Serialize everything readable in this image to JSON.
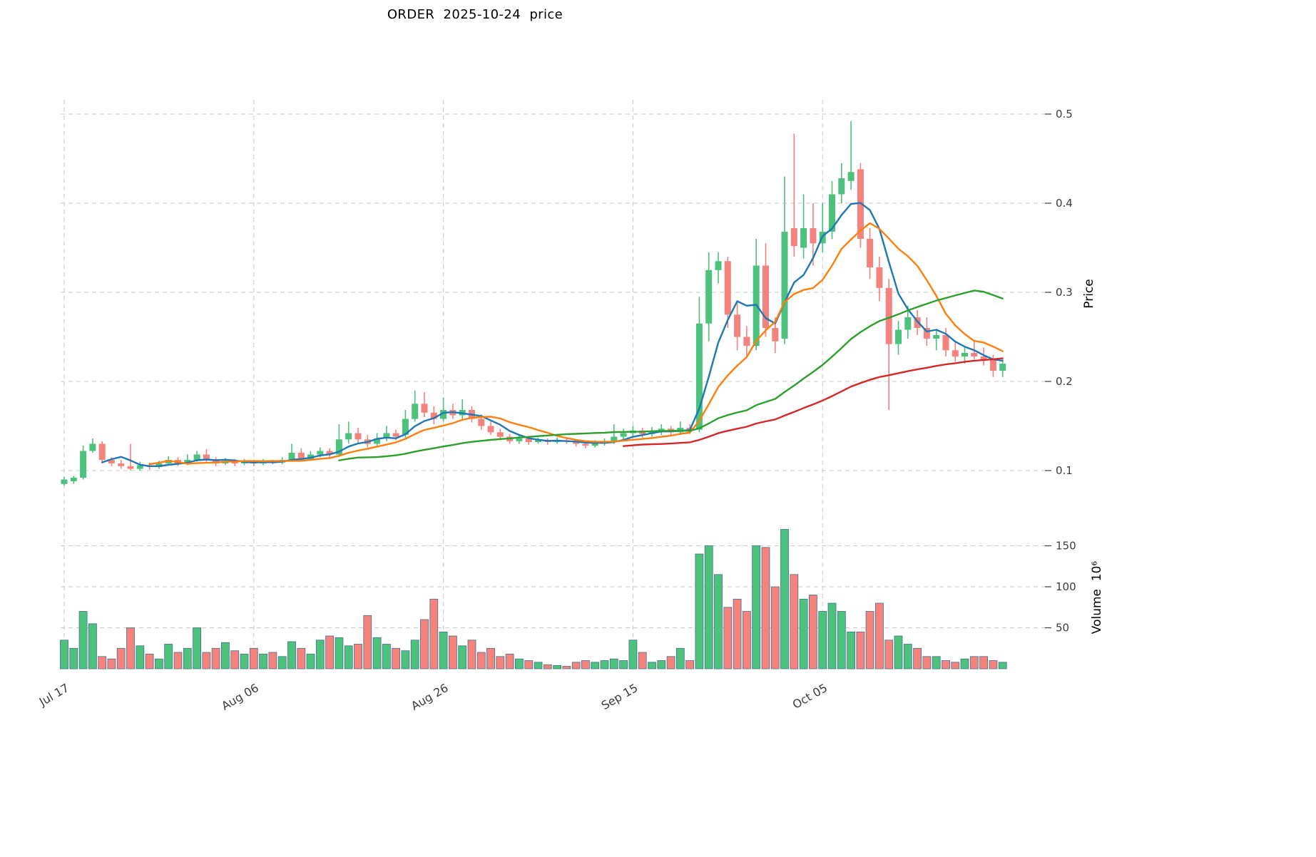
{
  "chart_data": {
    "type": "candlestick",
    "title": "ORDER  2025-10-24  price",
    "price_axis": {
      "label": "Price",
      "ticks": [
        0.1,
        0.2,
        0.3,
        0.4,
        0.5
      ],
      "range": [
        0.064,
        0.516
      ]
    },
    "volume_axis": {
      "label": "Volume  10⁶",
      "ticks": [
        50,
        100,
        150
      ],
      "range": [
        0,
        190
      ]
    },
    "x_tick_labels": [
      "Jul 17",
      "Aug 06",
      "Aug 26",
      "Sep 15",
      "Oct 05"
    ],
    "x_tick_indices": [
      0,
      20,
      40,
      60,
      80
    ],
    "grid": true,
    "moving_averages": [
      {
        "window": 5,
        "color": "#1f77b4"
      },
      {
        "window": 10,
        "color": "#ff7f0e"
      },
      {
        "window": 30,
        "color": "#2ca02c"
      },
      {
        "window": 60,
        "color": "#d62728"
      }
    ],
    "colors": {
      "up": "#4cc27d",
      "down": "#f4837d",
      "volume_edge": "#46708e",
      "grid": "#c9c9c9"
    },
    "ohlcv": {
      "open": [
        0.085,
        0.088,
        0.092,
        0.122,
        0.13,
        0.112,
        0.108,
        0.105,
        0.102,
        0.106,
        0.104,
        0.108,
        0.112,
        0.108,
        0.112,
        0.118,
        0.112,
        0.108,
        0.111,
        0.108,
        0.11,
        0.108,
        0.111,
        0.109,
        0.112,
        0.12,
        0.113,
        0.118,
        0.122,
        0.118,
        0.135,
        0.142,
        0.135,
        0.13,
        0.136,
        0.142,
        0.14,
        0.158,
        0.175,
        0.165,
        0.158,
        0.168,
        0.162,
        0.168,
        0.158,
        0.15,
        0.143,
        0.138,
        0.133,
        0.136,
        0.132,
        0.134,
        0.132,
        0.134,
        0.133,
        0.13,
        0.128,
        0.131,
        0.133,
        0.138,
        0.142,
        0.145,
        0.141,
        0.144,
        0.147,
        0.143,
        0.148,
        0.146,
        0.265,
        0.325,
        0.335,
        0.275,
        0.25,
        0.24,
        0.33,
        0.26,
        0.248,
        0.372,
        0.35,
        0.372,
        0.355,
        0.368,
        0.41,
        0.425,
        0.438,
        0.36,
        0.328,
        0.305,
        0.242,
        0.258,
        0.272,
        0.26,
        0.248,
        0.252,
        0.235,
        0.228,
        0.232,
        0.228,
        0.224,
        0.212
      ],
      "high": [
        0.093,
        0.094,
        0.128,
        0.136,
        0.133,
        0.115,
        0.112,
        0.13,
        0.11,
        0.109,
        0.111,
        0.116,
        0.115,
        0.118,
        0.122,
        0.124,
        0.115,
        0.114,
        0.113,
        0.113,
        0.112,
        0.113,
        0.112,
        0.115,
        0.13,
        0.125,
        0.122,
        0.126,
        0.125,
        0.152,
        0.155,
        0.148,
        0.14,
        0.142,
        0.15,
        0.146,
        0.168,
        0.19,
        0.188,
        0.172,
        0.182,
        0.175,
        0.18,
        0.172,
        0.163,
        0.155,
        0.147,
        0.141,
        0.14,
        0.139,
        0.137,
        0.136,
        0.137,
        0.136,
        0.135,
        0.133,
        0.134,
        0.136,
        0.152,
        0.147,
        0.15,
        0.148,
        0.149,
        0.152,
        0.15,
        0.155,
        0.152,
        0.295,
        0.345,
        0.345,
        0.34,
        0.29,
        0.262,
        0.36,
        0.355,
        0.272,
        0.43,
        0.478,
        0.41,
        0.4,
        0.4,
        0.425,
        0.445,
        0.492,
        0.445,
        0.372,
        0.34,
        0.315,
        0.268,
        0.285,
        0.28,
        0.272,
        0.258,
        0.26,
        0.245,
        0.24,
        0.245,
        0.238,
        0.23,
        0.225
      ],
      "low": [
        0.083,
        0.085,
        0.09,
        0.12,
        0.108,
        0.105,
        0.102,
        0.1,
        0.1,
        0.101,
        0.102,
        0.106,
        0.105,
        0.106,
        0.11,
        0.11,
        0.105,
        0.106,
        0.105,
        0.106,
        0.105,
        0.106,
        0.107,
        0.107,
        0.11,
        0.11,
        0.111,
        0.115,
        0.114,
        0.116,
        0.13,
        0.13,
        0.126,
        0.127,
        0.133,
        0.134,
        0.137,
        0.155,
        0.16,
        0.152,
        0.155,
        0.158,
        0.158,
        0.154,
        0.146,
        0.14,
        0.134,
        0.13,
        0.13,
        0.129,
        0.13,
        0.129,
        0.13,
        0.13,
        0.127,
        0.125,
        0.126,
        0.128,
        0.13,
        0.135,
        0.138,
        0.137,
        0.138,
        0.14,
        0.139,
        0.14,
        0.141,
        0.143,
        0.245,
        0.31,
        0.26,
        0.235,
        0.228,
        0.235,
        0.25,
        0.232,
        0.242,
        0.34,
        0.338,
        0.33,
        0.345,
        0.36,
        0.4,
        0.415,
        0.35,
        0.315,
        0.29,
        0.168,
        0.23,
        0.248,
        0.252,
        0.24,
        0.235,
        0.228,
        0.222,
        0.22,
        0.225,
        0.218,
        0.205,
        0.205
      ],
      "close": [
        0.09,
        0.092,
        0.122,
        0.13,
        0.112,
        0.108,
        0.105,
        0.102,
        0.106,
        0.104,
        0.108,
        0.112,
        0.108,
        0.112,
        0.118,
        0.112,
        0.108,
        0.111,
        0.108,
        0.11,
        0.108,
        0.111,
        0.109,
        0.112,
        0.12,
        0.113,
        0.118,
        0.122,
        0.118,
        0.135,
        0.142,
        0.135,
        0.13,
        0.136,
        0.142,
        0.138,
        0.158,
        0.175,
        0.165,
        0.158,
        0.168,
        0.162,
        0.168,
        0.158,
        0.15,
        0.143,
        0.138,
        0.133,
        0.136,
        0.132,
        0.134,
        0.132,
        0.134,
        0.133,
        0.13,
        0.128,
        0.131,
        0.133,
        0.138,
        0.142,
        0.145,
        0.141,
        0.144,
        0.147,
        0.143,
        0.148,
        0.145,
        0.265,
        0.325,
        0.335,
        0.275,
        0.25,
        0.24,
        0.33,
        0.26,
        0.245,
        0.368,
        0.352,
        0.372,
        0.355,
        0.368,
        0.41,
        0.428,
        0.435,
        0.36,
        0.328,
        0.305,
        0.242,
        0.258,
        0.272,
        0.26,
        0.248,
        0.252,
        0.235,
        0.228,
        0.232,
        0.228,
        0.224,
        0.212,
        0.22
      ],
      "volume_millions": [
        35,
        25,
        70,
        55,
        15,
        12,
        25,
        50,
        28,
        18,
        12,
        30,
        20,
        25,
        50,
        20,
        25,
        32,
        22,
        18,
        25,
        18,
        20,
        15,
        33,
        25,
        18,
        35,
        40,
        38,
        28,
        30,
        65,
        38,
        30,
        25,
        22,
        35,
        60,
        85,
        45,
        40,
        28,
        35,
        20,
        25,
        15,
        18,
        12,
        10,
        8,
        5,
        4,
        3,
        8,
        10,
        8,
        10,
        12,
        10,
        35,
        20,
        8,
        10,
        15,
        25,
        10,
        140,
        150,
        115,
        75,
        85,
        70,
        150,
        148,
        100,
        170,
        115,
        85,
        90,
        70,
        80,
        70,
        45,
        45,
        70,
        80,
        35,
        40,
        30,
        25,
        15,
        15,
        10,
        8,
        12,
        15,
        15,
        10,
        8
      ]
    }
  }
}
